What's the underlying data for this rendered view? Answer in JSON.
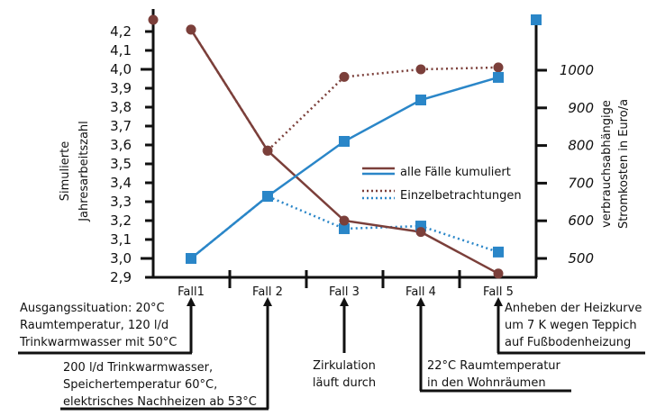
{
  "chart_data": {
    "type": "line",
    "title": "",
    "categories": [
      "Fall1",
      "Fall 2",
      "Fall 3",
      "Fall 4",
      "Fall 5"
    ],
    "xlabel": "",
    "ylabel": "Simulierte Jahresarbeitszahl",
    "ylabel_right": "verbrauchsabhängige Stromkosten in Euro/a",
    "ylim": [
      2.9,
      4.2
    ],
    "ylim_right": [
      500,
      1000
    ],
    "yticks": [
      "2,9",
      "3,0",
      "3,1",
      "3,2",
      "3,3",
      "3,4",
      "3,5",
      "3,6",
      "3,7",
      "3,8",
      "3,9",
      "4,0",
      "4,1",
      "4,2"
    ],
    "yticks_right": [
      "500",
      "600",
      "700",
      "800",
      "900",
      "1000"
    ],
    "grid": false,
    "legend_position": "center-right",
    "series": [
      {
        "name": "alle Fälle kumuliert (Jahresarbeitszahl)",
        "axis": "left",
        "style": "solid",
        "color": "#7b3f3a",
        "marker": "circle",
        "values": [
          4.21,
          3.57,
          3.2,
          3.14,
          2.92
        ]
      },
      {
        "name": "alle Fälle kumuliert (Stromkosten)",
        "axis": "right",
        "style": "solid",
        "color": "#2a86c8",
        "marker": "square",
        "values": [
          500,
          665,
          811,
          921,
          981
        ]
      },
      {
        "name": "Einzelbetrachtungen (Jahresarbeitszahl)",
        "axis": "left",
        "style": "dotted",
        "color": "#7b3f3a",
        "marker": "circle",
        "values": [
          4.21,
          3.57,
          3.96,
          4.0,
          4.01
        ]
      },
      {
        "name": "Einzelbetrachtungen (Stromkosten)",
        "axis": "right",
        "style": "dotted",
        "color": "#2a86c8",
        "marker": "square",
        "values": [
          500,
          665,
          579,
          586,
          517
        ]
      }
    ],
    "axis_markers": {
      "left_top_circle": 4.26,
      "right_top_square": 1130
    },
    "legend": [
      {
        "label": "alle Fälle kumuliert",
        "style": "solid"
      },
      {
        "label": "Einzelbetrachtungen",
        "style": "dotted"
      }
    ],
    "annotations": [
      {
        "target": "Fall1",
        "text": [
          "Ausgangssituation: 20°C",
          "Raumtemperatur, 120 l/d",
          "Trinkwarmwasser mit 50°C"
        ]
      },
      {
        "target": "Fall 2",
        "text": [
          "200 l/d Trinkwarmwasser,",
          "Speichertemperatur 60°C,",
          "elektrisches Nachheizen ab 53°C"
        ]
      },
      {
        "target": "Fall 3",
        "text": [
          "Zirkulation",
          "läuft durch"
        ]
      },
      {
        "target": "Fall 4",
        "text": [
          "22°C Raumtemperatur",
          "in den Wohnräumen"
        ]
      },
      {
        "target": "Fall 5",
        "text": [
          "Anheben der Heizkurve",
          "um 7 K wegen Teppich",
          "auf Fußbodenheizung"
        ]
      }
    ]
  },
  "colors": {
    "brown": "#7b3f3a",
    "blue": "#2a86c8",
    "axis": "#111111"
  }
}
